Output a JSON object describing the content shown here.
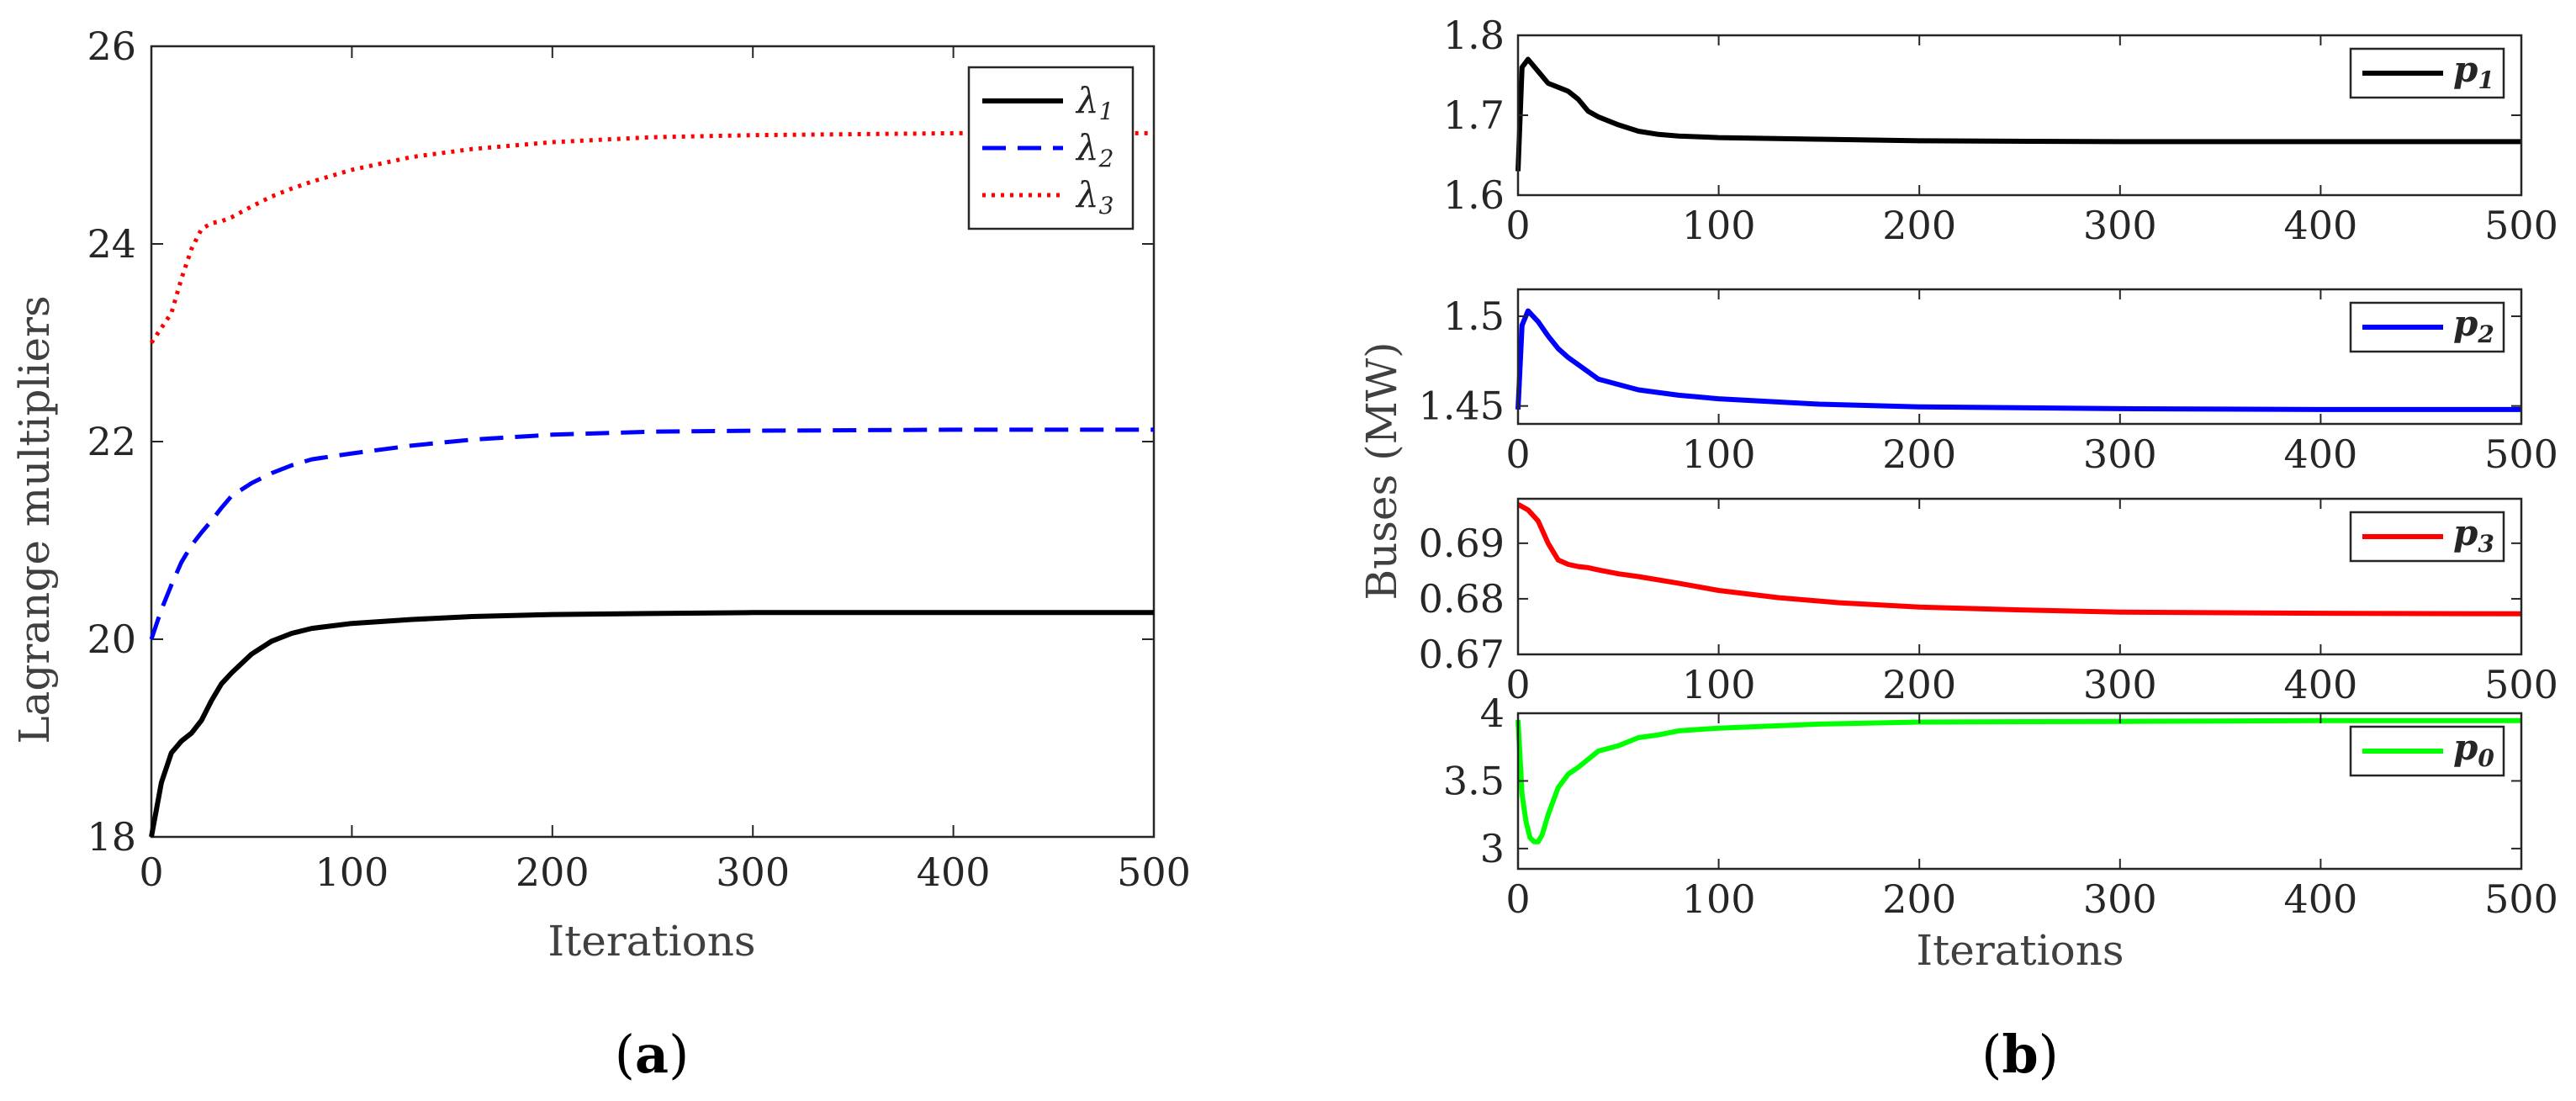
{
  "panel_labels": {
    "a": "a",
    "b": "b"
  },
  "chart_data": [
    {
      "id": "a",
      "type": "line",
      "xlabel": "Iterations",
      "ylabel": "Lagrange multipliers",
      "xlim": [
        0,
        500
      ],
      "ylim": [
        18,
        26
      ],
      "xticks": [
        0,
        100,
        200,
        300,
        400,
        500
      ],
      "yticks": [
        18,
        20,
        22,
        24,
        26
      ],
      "legend_position": "top-right",
      "series": [
        {
          "name": "λ1",
          "legend_symbol": "λ",
          "legend_sub": "1",
          "color": "#000000",
          "style": "solid",
          "points": [
            [
              0,
              18.0
            ],
            [
              5,
              18.55
            ],
            [
              10,
              18.85
            ],
            [
              15,
              18.97
            ],
            [
              20,
              19.05
            ],
            [
              25,
              19.18
            ],
            [
              30,
              19.38
            ],
            [
              35,
              19.55
            ],
            [
              40,
              19.66
            ],
            [
              50,
              19.85
            ],
            [
              60,
              19.98
            ],
            [
              70,
              20.06
            ],
            [
              80,
              20.11
            ],
            [
              100,
              20.16
            ],
            [
              130,
              20.2
            ],
            [
              160,
              20.23
            ],
            [
              200,
              20.25
            ],
            [
              250,
              20.26
            ],
            [
              300,
              20.27
            ],
            [
              400,
              20.27
            ],
            [
              500,
              20.27
            ]
          ]
        },
        {
          "name": "λ2",
          "legend_symbol": "λ",
          "legend_sub": "2",
          "color": "#0000FF",
          "style": "dashed",
          "points": [
            [
              0,
              20.0
            ],
            [
              5,
              20.3
            ],
            [
              10,
              20.55
            ],
            [
              15,
              20.78
            ],
            [
              20,
              20.95
            ],
            [
              25,
              21.08
            ],
            [
              30,
              21.2
            ],
            [
              35,
              21.33
            ],
            [
              40,
              21.45
            ],
            [
              50,
              21.58
            ],
            [
              60,
              21.68
            ],
            [
              70,
              21.76
            ],
            [
              80,
              21.82
            ],
            [
              100,
              21.88
            ],
            [
              130,
              21.96
            ],
            [
              160,
              22.02
            ],
            [
              200,
              22.07
            ],
            [
              250,
              22.1
            ],
            [
              300,
              22.11
            ],
            [
              400,
              22.12
            ],
            [
              500,
              22.12
            ]
          ]
        },
        {
          "name": "λ3",
          "legend_symbol": "λ",
          "legend_sub": "3",
          "color": "#FF0000",
          "style": "dotted",
          "points": [
            [
              0,
              23.0
            ],
            [
              5,
              23.15
            ],
            [
              10,
              23.3
            ],
            [
              15,
              23.65
            ],
            [
              20,
              23.95
            ],
            [
              25,
              24.15
            ],
            [
              30,
              24.21
            ],
            [
              35,
              24.23
            ],
            [
              40,
              24.27
            ],
            [
              50,
              24.38
            ],
            [
              60,
              24.48
            ],
            [
              70,
              24.56
            ],
            [
              80,
              24.63
            ],
            [
              100,
              24.75
            ],
            [
              130,
              24.88
            ],
            [
              160,
              24.96
            ],
            [
              200,
              25.03
            ],
            [
              250,
              25.08
            ],
            [
              300,
              25.1
            ],
            [
              400,
              25.12
            ],
            [
              500,
              25.12
            ]
          ]
        }
      ]
    },
    {
      "id": "b",
      "type": "line",
      "xlabel": "Iterations",
      "ylabel": "Buses (MW)",
      "xlim": [
        0,
        500
      ],
      "xticks": [
        0,
        100,
        200,
        300,
        400,
        500
      ],
      "subplots": [
        {
          "name": "p1",
          "legend_symbol": "p",
          "legend_sub": "1",
          "color": "#000000",
          "ylim": [
            1.6,
            1.8
          ],
          "yticks": [
            1.6,
            1.7,
            1.8
          ],
          "points": [
            [
              0,
              1.63
            ],
            [
              2,
              1.76
            ],
            [
              5,
              1.77
            ],
            [
              10,
              1.755
            ],
            [
              15,
              1.74
            ],
            [
              20,
              1.735
            ],
            [
              25,
              1.73
            ],
            [
              30,
              1.72
            ],
            [
              35,
              1.705
            ],
            [
              40,
              1.698
            ],
            [
              50,
              1.688
            ],
            [
              60,
              1.68
            ],
            [
              70,
              1.676
            ],
            [
              80,
              1.674
            ],
            [
              100,
              1.672
            ],
            [
              150,
              1.67
            ],
            [
              200,
              1.668
            ],
            [
              300,
              1.667
            ],
            [
              400,
              1.667
            ],
            [
              500,
              1.667
            ]
          ]
        },
        {
          "name": "p2",
          "legend_symbol": "p",
          "legend_sub": "2",
          "color": "#0000FF",
          "ylim": [
            1.44,
            1.515
          ],
          "yticks": [
            1.45,
            1.5
          ],
          "points": [
            [
              0,
              1.448
            ],
            [
              2,
              1.495
            ],
            [
              5,
              1.503
            ],
            [
              10,
              1.497
            ],
            [
              15,
              1.489
            ],
            [
              20,
              1.482
            ],
            [
              25,
              1.477
            ],
            [
              30,
              1.473
            ],
            [
              35,
              1.469
            ],
            [
              40,
              1.465
            ],
            [
              50,
              1.462
            ],
            [
              60,
              1.459
            ],
            [
              80,
              1.456
            ],
            [
              100,
              1.454
            ],
            [
              150,
              1.451
            ],
            [
              200,
              1.4495
            ],
            [
              300,
              1.4485
            ],
            [
              400,
              1.448
            ],
            [
              500,
              1.448
            ]
          ]
        },
        {
          "name": "p3",
          "legend_symbol": "p",
          "legend_sub": "3",
          "color": "#FF0000",
          "ylim": [
            0.67,
            0.698
          ],
          "yticks": [
            0.67,
            0.68,
            0.69
          ],
          "points": [
            [
              0,
              0.697
            ],
            [
              5,
              0.696
            ],
            [
              10,
              0.694
            ],
            [
              15,
              0.69
            ],
            [
              20,
              0.687
            ],
            [
              25,
              0.6862
            ],
            [
              30,
              0.6858
            ],
            [
              35,
              0.6856
            ],
            [
              40,
              0.6852
            ],
            [
              50,
              0.6845
            ],
            [
              60,
              0.684
            ],
            [
              80,
              0.6828
            ],
            [
              100,
              0.6815
            ],
            [
              130,
              0.6802
            ],
            [
              160,
              0.6793
            ],
            [
              200,
              0.6785
            ],
            [
              250,
              0.678
            ],
            [
              300,
              0.6776
            ],
            [
              400,
              0.6774
            ],
            [
              500,
              0.6773
            ]
          ]
        },
        {
          "name": "p0",
          "legend_symbol": "p",
          "legend_sub": "0",
          "color": "#00FF00",
          "ylim": [
            2.85,
            4.0
          ],
          "yticks": [
            3,
            3.5,
            4
          ],
          "points": [
            [
              0,
              3.95
            ],
            [
              2,
              3.4
            ],
            [
              4,
              3.2
            ],
            [
              6,
              3.08
            ],
            [
              8,
              3.05
            ],
            [
              10,
              3.05
            ],
            [
              12,
              3.1
            ],
            [
              15,
              3.25
            ],
            [
              20,
              3.45
            ],
            [
              25,
              3.55
            ],
            [
              30,
              3.6
            ],
            [
              35,
              3.66
            ],
            [
              40,
              3.72
            ],
            [
              50,
              3.76
            ],
            [
              60,
              3.82
            ],
            [
              70,
              3.84
            ],
            [
              80,
              3.87
            ],
            [
              100,
              3.89
            ],
            [
              150,
              3.92
            ],
            [
              200,
              3.935
            ],
            [
              300,
              3.94
            ],
            [
              400,
              3.945
            ],
            [
              500,
              3.945
            ]
          ]
        }
      ]
    }
  ]
}
